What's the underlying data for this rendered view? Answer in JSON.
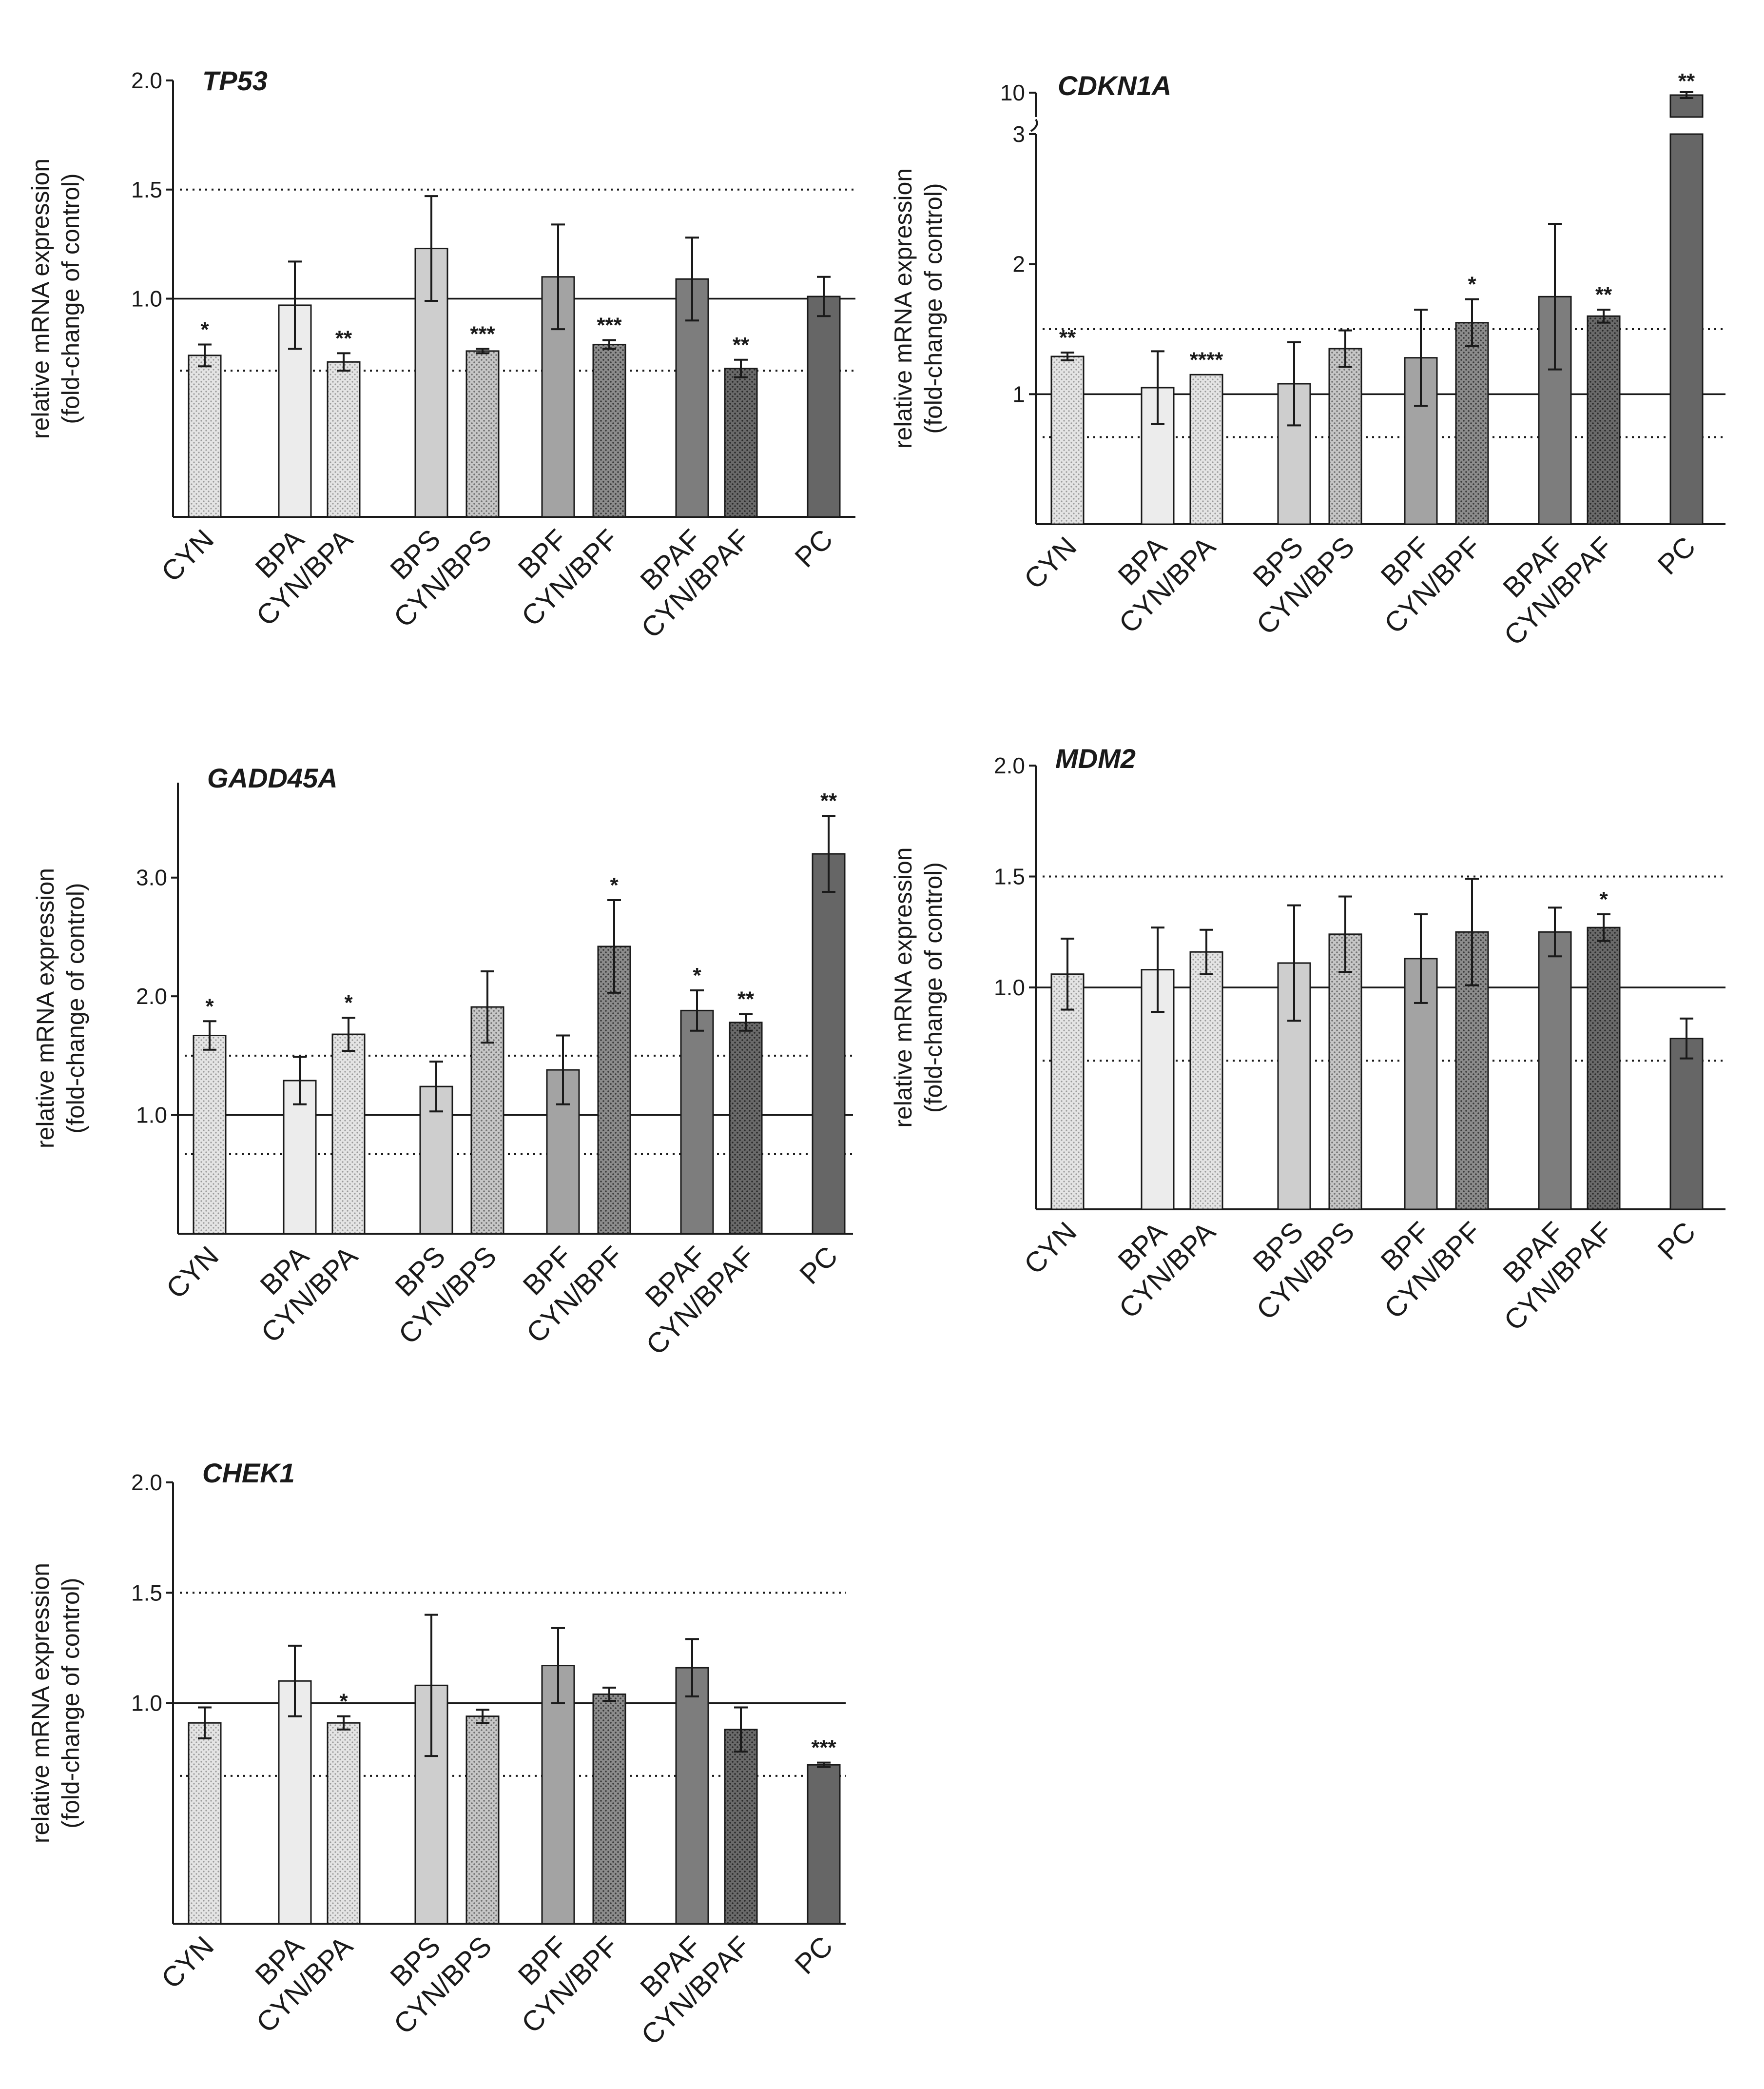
{
  "figure": {
    "ylabel_line1": "relative mRNA expression",
    "ylabel_line2": "(fold-change of control)"
  },
  "colors": {
    "CYN": "#dcdcdc",
    "BPA": "#ececec",
    "CYN/BPA": "#d2d2d2",
    "BPS": "#cecece",
    "CYN/BPS": "#ababab",
    "BPF": "#a3a3a3",
    "CYN/BPF": "#858585",
    "BPAF": "#7d7d7d",
    "CYN/BPAF": "#5e5e5e",
    "PC": "#666666"
  },
  "chart_data": [
    {
      "type": "bar",
      "title": "TP53",
      "categories": [
        "CYN",
        "BPA",
        "CYN/BPA",
        "BPS",
        "CYN/BPS",
        "BPF",
        "CYN/BPF",
        "BPAF",
        "CYN/BPAF",
        "PC"
      ],
      "values": [
        0.74,
        0.97,
        0.71,
        1.23,
        0.76,
        1.1,
        0.79,
        1.09,
        0.68,
        1.01
      ],
      "errors": [
        0.05,
        0.2,
        0.04,
        0.24,
        0.01,
        0.24,
        0.02,
        0.19,
        0.04,
        0.09
      ],
      "significance": [
        "*",
        "",
        "**",
        "",
        "***",
        "",
        "***",
        "",
        "**",
        ""
      ],
      "yticks": [
        "2.0",
        "1.5",
        "1.0"
      ],
      "ylim": [
        0,
        2.0
      ],
      "reference_lines": {
        "solid": 1.0,
        "dotted": [
          1.5,
          0.67
        ]
      }
    },
    {
      "type": "bar",
      "title": "CDKN1A",
      "categories": [
        "CYN",
        "BPA",
        "CYN/BPA",
        "BPS",
        "CYN/BPS",
        "BPF",
        "CYN/BPF",
        "BPAF",
        "CYN/BPAF",
        "PC"
      ],
      "values": [
        1.29,
        1.05,
        1.15,
        1.08,
        1.35,
        1.28,
        1.55,
        1.75,
        1.6,
        9.8
      ],
      "errors": [
        0.03,
        0.28,
        0.0,
        0.32,
        0.14,
        0.37,
        0.18,
        0.56,
        0.05,
        0.2
      ],
      "significance": [
        "**",
        "",
        "****",
        "",
        "",
        "",
        "*",
        "",
        "**",
        "**"
      ],
      "yticks": [
        "10",
        "3",
        "2",
        "1"
      ],
      "ylim": [
        0,
        3
      ],
      "axis_break": {
        "lower_top": 3,
        "upper": 10
      },
      "reference_lines": {
        "solid": 1.0,
        "dotted": [
          1.5,
          0.67
        ]
      }
    },
    {
      "type": "bar",
      "title": "GADD45A",
      "categories": [
        "CYN",
        "BPA",
        "CYN/BPA",
        "BPS",
        "CYN/BPS",
        "BPF",
        "CYN/BPF",
        "BPAF",
        "CYN/BPAF",
        "PC"
      ],
      "values": [
        1.67,
        1.29,
        1.68,
        1.24,
        1.91,
        1.38,
        2.42,
        1.88,
        1.78,
        3.2
      ],
      "errors": [
        0.12,
        0.2,
        0.14,
        0.21,
        0.3,
        0.29,
        0.39,
        0.17,
        0.07,
        0.32
      ],
      "significance": [
        "*",
        "",
        "*",
        "",
        "",
        "",
        "*",
        "*",
        "**",
        "**"
      ],
      "yticks": [
        "3.0",
        "2.0",
        "1.0"
      ],
      "ylim": [
        0,
        3.8
      ],
      "reference_lines": {
        "solid": 1.0,
        "dotted": [
          1.5,
          0.67
        ]
      }
    },
    {
      "type": "bar",
      "title": "MDM2",
      "categories": [
        "CYN",
        "BPA",
        "CYN/BPA",
        "BPS",
        "CYN/BPS",
        "BPF",
        "CYN/BPF",
        "BPAF",
        "CYN/BPAF",
        "PC"
      ],
      "values": [
        1.06,
        1.08,
        1.16,
        1.11,
        1.24,
        1.13,
        1.25,
        1.25,
        1.27,
        0.77
      ],
      "errors": [
        0.16,
        0.19,
        0.1,
        0.26,
        0.17,
        0.2,
        0.24,
        0.11,
        0.06,
        0.09
      ],
      "significance": [
        "",
        "",
        "",
        "",
        "",
        "",
        "",
        "",
        "*",
        ""
      ],
      "yticks": [
        "2.0",
        "1.5",
        "1.0"
      ],
      "ylim": [
        0,
        2.0
      ],
      "reference_lines": {
        "solid": 1.0,
        "dotted": [
          1.5,
          0.67
        ]
      }
    },
    {
      "type": "bar",
      "title": "CHEK1",
      "categories": [
        "CYN",
        "BPA",
        "CYN/BPA",
        "BPS",
        "CYN/BPS",
        "BPF",
        "CYN/BPF",
        "BPAF",
        "CYN/BPAF",
        "PC"
      ],
      "values": [
        0.91,
        1.1,
        0.91,
        1.08,
        0.94,
        1.17,
        1.04,
        1.16,
        0.88,
        0.72
      ],
      "errors": [
        0.07,
        0.16,
        0.03,
        0.32,
        0.03,
        0.17,
        0.03,
        0.13,
        0.1,
        0.01
      ],
      "significance": [
        "",
        "",
        "*",
        "",
        "",
        "",
        "",
        "",
        "",
        "***"
      ],
      "yticks": [
        "2.0",
        "1.5",
        "1.0"
      ],
      "ylim": [
        0,
        2.0
      ],
      "reference_lines": {
        "solid": 1.0,
        "dotted": [
          1.5,
          0.67
        ]
      }
    }
  ]
}
